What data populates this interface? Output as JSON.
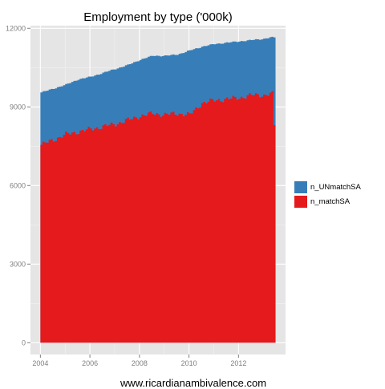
{
  "chart_data": {
    "type": "area",
    "stacked": true,
    "title": "Employment by type ('000k)",
    "xlabel": "",
    "ylabel": "",
    "x_start": 2004.0,
    "x_end": 2013.417,
    "x_step": 0.0833,
    "xlim": [
      2003.6,
      2013.9
    ],
    "ylim": [
      -450,
      12100
    ],
    "x_ticks": [
      2004,
      2006,
      2008,
      2010,
      2012
    ],
    "x_tick_labels": [
      "2004",
      "2006",
      "2008",
      "2010",
      "2012"
    ],
    "y_ticks": [
      0,
      3000,
      6000,
      9000,
      12000
    ],
    "y_tick_labels": [
      "0",
      "3000",
      "6000",
      "9000",
      "12000"
    ],
    "grid": true,
    "legend_position": "right",
    "legend_order": [
      "n_UNmatchSA",
      "n_matchSA"
    ],
    "series": [
      {
        "name": "n_matchSA",
        "color": "#E41A1C",
        "x": [
          2004.0,
          2004.5,
          2005.0,
          2005.5,
          2006.0,
          2006.5,
          2007.0,
          2007.5,
          2008.0,
          2008.5,
          2009.0,
          2009.5,
          2010.0,
          2010.5,
          2011.0,
          2011.5,
          2012.0,
          2012.5,
          2013.0,
          2013.25,
          2013.33,
          2013.417
        ],
        "values": [
          7550,
          7750,
          7950,
          8050,
          8150,
          8250,
          8350,
          8500,
          8650,
          8750,
          8700,
          8750,
          8700,
          9150,
          9250,
          9300,
          9350,
          9450,
          9450,
          9500,
          9500,
          8300
        ]
      },
      {
        "name": "n_UNmatchSA",
        "color": "#377EB8",
        "x": [
          2004.0,
          2004.5,
          2005.0,
          2005.5,
          2006.0,
          2006.5,
          2007.0,
          2007.5,
          2008.0,
          2008.5,
          2009.0,
          2009.5,
          2010.0,
          2010.5,
          2011.0,
          2011.5,
          2012.0,
          2012.5,
          2013.0,
          2013.25,
          2013.33,
          2013.417
        ],
        "totals": [
          9550,
          9700,
          9850,
          10050,
          10150,
          10300,
          10450,
          10600,
          10800,
          10950,
          10950,
          11000,
          11150,
          11300,
          11400,
          11450,
          11500,
          11550,
          11600,
          11650,
          11650,
          11650
        ]
      }
    ]
  },
  "caption": "www.ricardianambivalence.com"
}
